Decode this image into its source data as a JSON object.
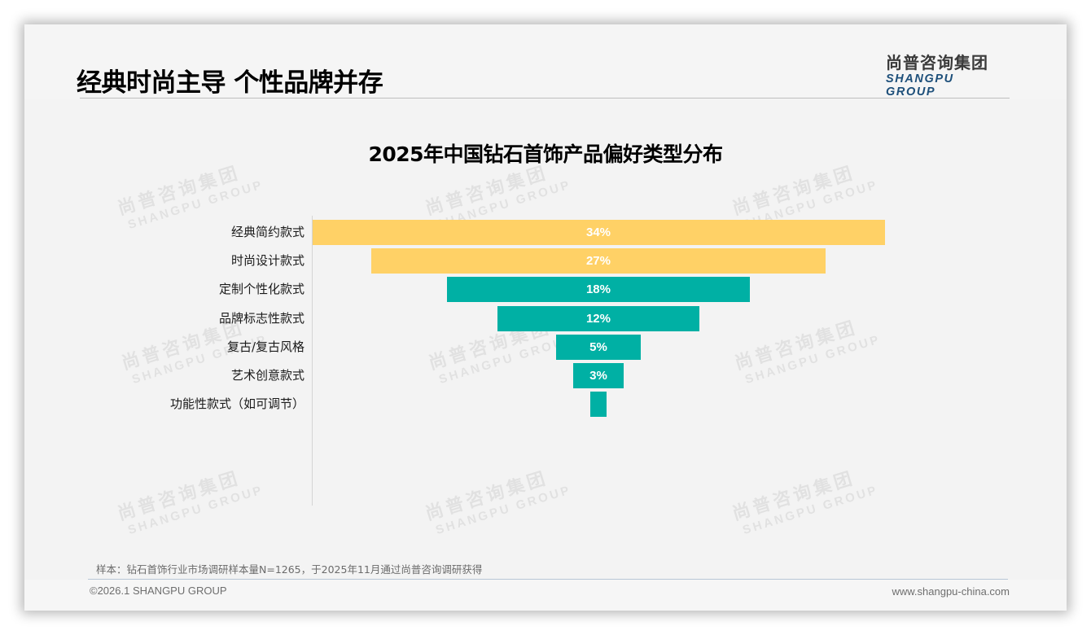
{
  "page": {
    "title": "经典时尚主导 个性品牌并存",
    "logo_cn": "尚普咨询集团",
    "logo_en": "SHANGPU GROUP",
    "watermark_cn": "尚普咨询集团",
    "watermark_en": "SHANGPU GROUP"
  },
  "chart_data": {
    "type": "bar",
    "subtype": "funnel (centered horizontal bars)",
    "title": "2025年中国钻石首饰产品偏好类型分布",
    "categories": [
      "经典简约款式",
      "时尚设计款式",
      "定制个性化款式",
      "品牌标志性款式",
      "复古/复古风格",
      "艺术创意款式",
      "功能性款式（如可调节）"
    ],
    "values": [
      34,
      27,
      18,
      12,
      5,
      3,
      1
    ],
    "value_labels": [
      "34%",
      "27%",
      "18%",
      "12%",
      "5%",
      "3%",
      ""
    ],
    "colors": [
      "#ffd166",
      "#ffd166",
      "#00b0a4",
      "#00b0a4",
      "#00b0a4",
      "#00b0a4",
      "#00b0a4"
    ],
    "unit": "%",
    "xlabel": "",
    "ylabel": "",
    "grid": false,
    "legend": null
  },
  "footer": {
    "note": "样本：钻石首饰行业市场调研样本量N=1265，于2025年11月通过尚普咨询调研获得",
    "copyright": "©2026.1 SHANGPU GROUP",
    "website": "www.shangpu-china.com"
  }
}
